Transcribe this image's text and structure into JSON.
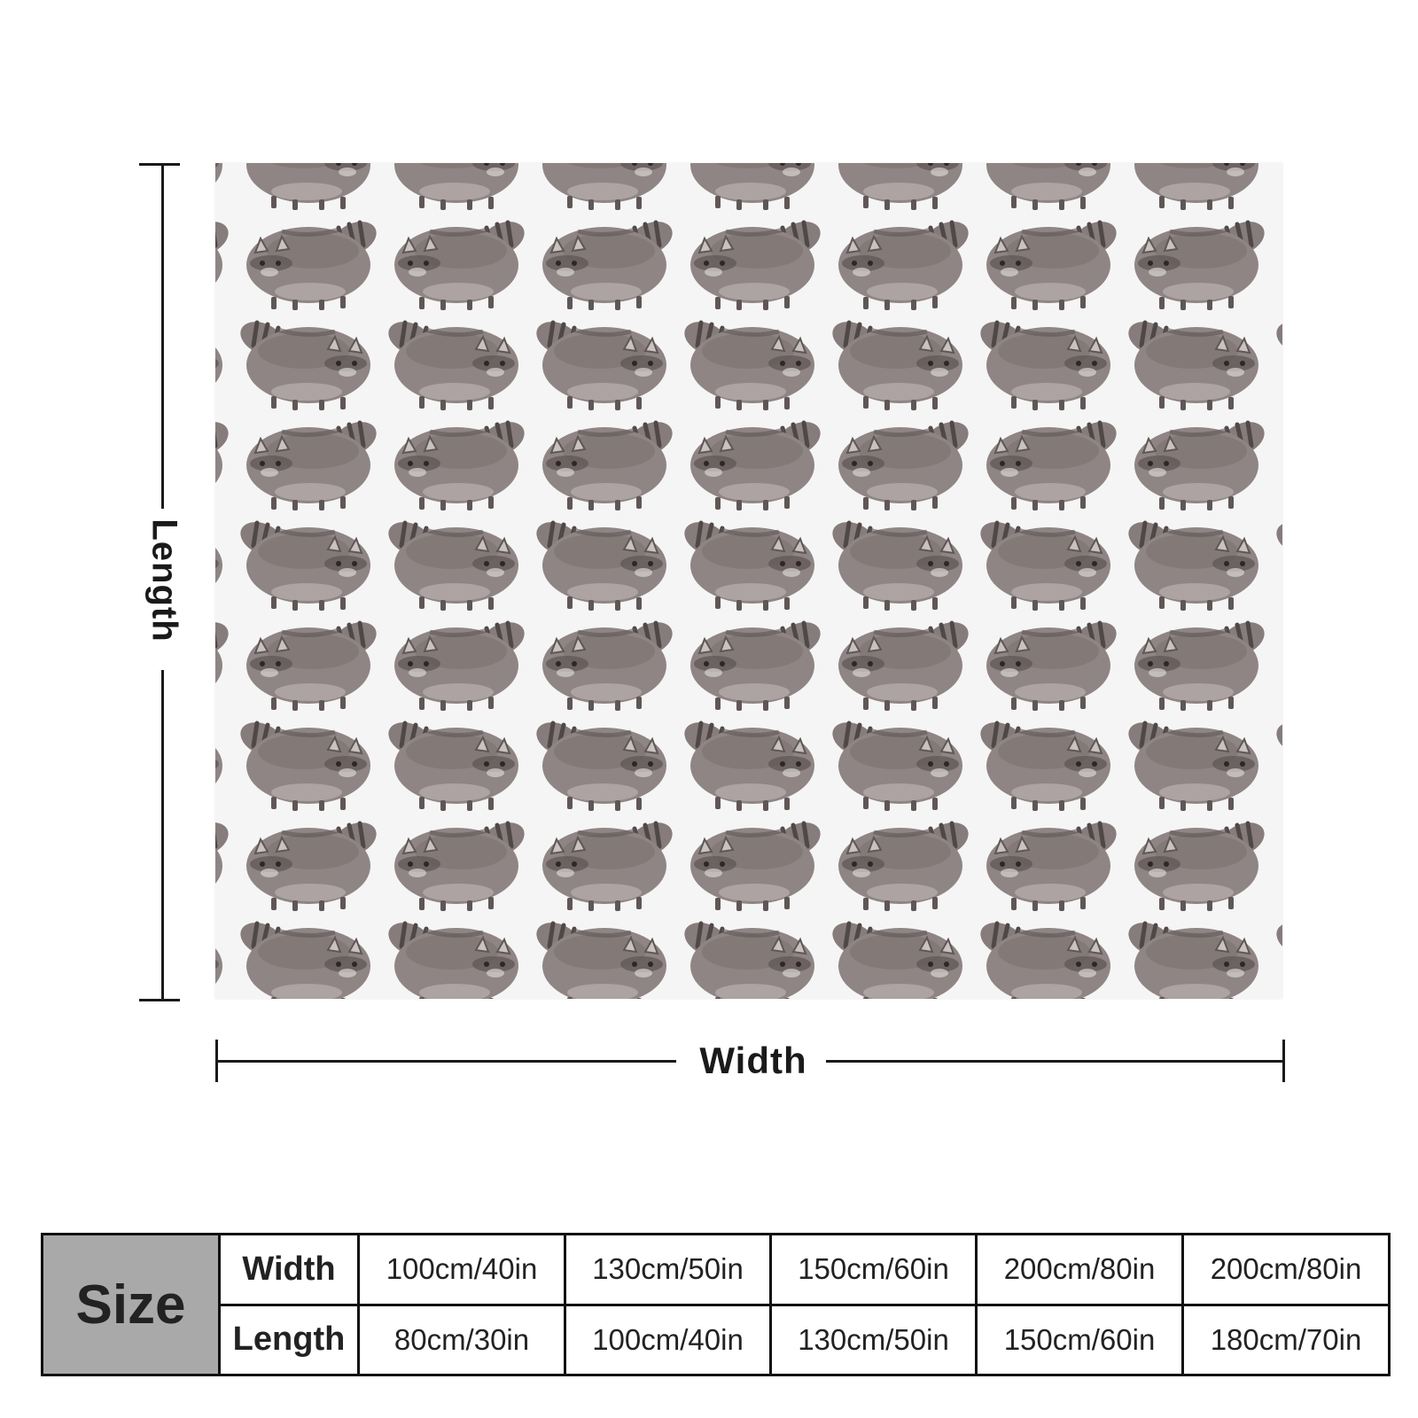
{
  "product": {
    "pattern_icon": "raccoon-icon",
    "colors": {
      "background": "#f6f5f5",
      "raccoon_body": "#8e8584",
      "raccoon_dark": "#5f5756",
      "raccoon_light": "#c9c2c0"
    }
  },
  "dimensions": {
    "length_label": "Length",
    "width_label": "Width"
  },
  "size_table": {
    "header": "Size",
    "width_label": "Width",
    "length_label": "Length",
    "widths": [
      "100cm/40in",
      "130cm/50in",
      "150cm/60in",
      "200cm/80in",
      "200cm/80in"
    ],
    "lengths": [
      "80cm/30in",
      "100cm/40in",
      "130cm/50in",
      "150cm/60in",
      "180cm/70in"
    ]
  }
}
